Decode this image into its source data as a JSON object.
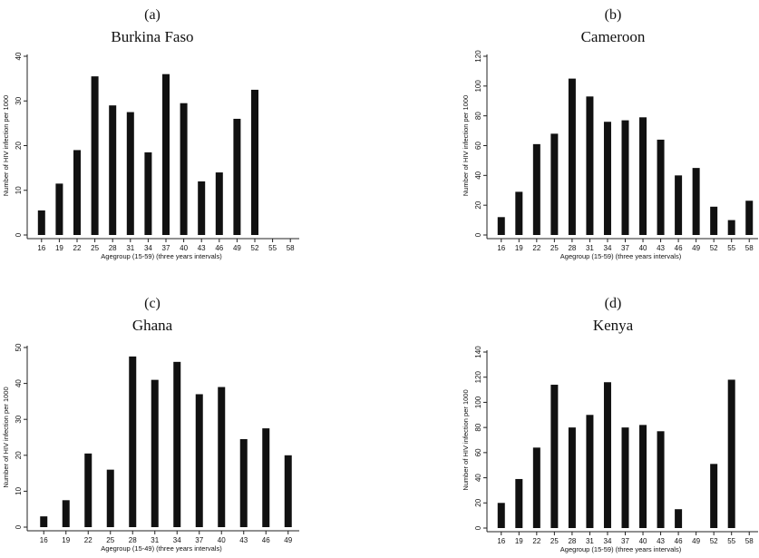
{
  "chart_data": [
    {
      "type": "bar",
      "panel_label": "(a)",
      "title": "Burkina Faso",
      "xlabel": "Agegroup (15-59) (three years intervals)",
      "ylabel": "Number of HIV infection per 1000",
      "categories": [
        "16",
        "19",
        "22",
        "25",
        "28",
        "31",
        "34",
        "37",
        "40",
        "43",
        "46",
        "49",
        "52",
        "55",
        "58"
      ],
      "values": [
        5.5,
        11.5,
        19,
        35.5,
        29,
        27.5,
        18.5,
        36,
        29.5,
        12,
        14,
        26,
        32.5,
        null,
        null
      ],
      "ylim": [
        0,
        40
      ],
      "yticks": [
        0,
        10,
        20,
        30,
        40
      ]
    },
    {
      "type": "bar",
      "panel_label": "(b)",
      "title": "Cameroon",
      "xlabel": "Agegroup (15-59) (three years intervals)",
      "ylabel": "Number of HIV infection per 1000",
      "categories": [
        "16",
        "19",
        "22",
        "25",
        "28",
        "31",
        "34",
        "37",
        "40",
        "43",
        "46",
        "49",
        "52",
        "55",
        "58"
      ],
      "values": [
        12,
        29,
        61,
        68,
        105,
        93,
        76,
        77,
        79,
        64,
        40,
        45,
        19,
        10,
        23
      ],
      "ylim": [
        0,
        120
      ],
      "yticks": [
        0,
        20,
        40,
        60,
        80,
        100,
        120
      ]
    },
    {
      "type": "bar",
      "panel_label": "(c)",
      "title": "Ghana",
      "xlabel": "Agegroup (15-49) (three years intervals)",
      "ylabel": "Number of HIV infection per 1000",
      "categories": [
        "16",
        "19",
        "22",
        "25",
        "28",
        "31",
        "34",
        "37",
        "40",
        "43",
        "46",
        "49"
      ],
      "values": [
        3,
        7.5,
        20.5,
        16,
        47.5,
        41,
        46,
        37,
        39,
        24.5,
        27.5,
        20
      ],
      "ylim": [
        0,
        50
      ],
      "yticks": [
        0,
        10,
        20,
        30,
        40,
        50
      ]
    },
    {
      "type": "bar",
      "panel_label": "(d)",
      "title": "Kenya",
      "xlabel": "Agegroup (15-59) (three years intervals)",
      "ylabel": "Number of HIV infection per 1000",
      "categories": [
        "16",
        "19",
        "22",
        "25",
        "28",
        "31",
        "34",
        "37",
        "40",
        "43",
        "46",
        "49",
        "52",
        "55",
        "58"
      ],
      "values": [
        20,
        39,
        64,
        114,
        80,
        90,
        116,
        80,
        82,
        77,
        15,
        null,
        51,
        118,
        null
      ],
      "ylim": [
        0,
        140
      ],
      "yticks": [
        0,
        20,
        40,
        60,
        80,
        100,
        120,
        140
      ]
    }
  ]
}
